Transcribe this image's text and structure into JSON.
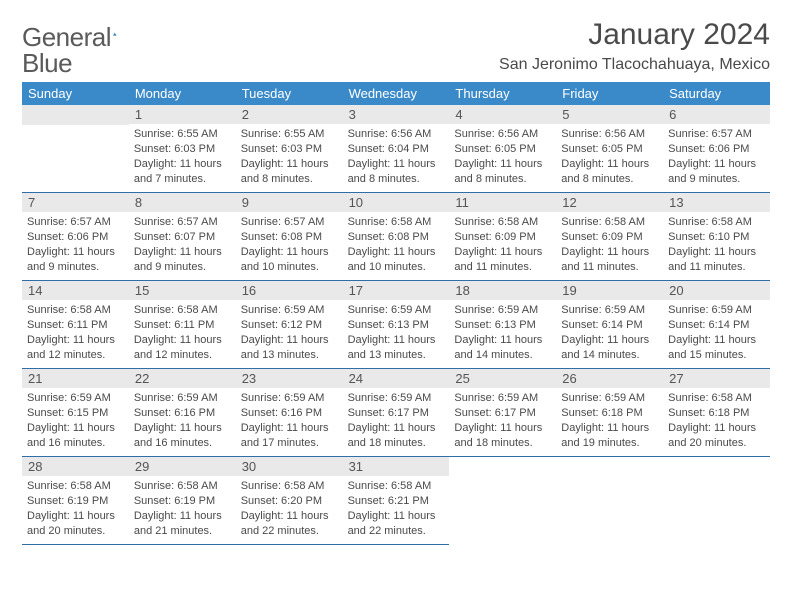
{
  "brand": {
    "word1": "General",
    "word2": "Blue"
  },
  "title": "January 2024",
  "location": "San Jeronimo Tlacochahuaya, Mexico",
  "colors": {
    "header_bg": "#3a8ac9",
    "header_text": "#ffffff",
    "daynum_bg": "#e9e9e9",
    "row_divider": "#2f6fa8",
    "body_text": "#4a4a4a"
  },
  "calendar": {
    "weekdays": [
      "Sunday",
      "Monday",
      "Tuesday",
      "Wednesday",
      "Thursday",
      "Friday",
      "Saturday"
    ],
    "start_weekday_index": 1,
    "days": [
      {
        "n": 1,
        "sunrise": "6:55 AM",
        "sunset": "6:03 PM",
        "daylight": "11 hours and 7 minutes."
      },
      {
        "n": 2,
        "sunrise": "6:55 AM",
        "sunset": "6:03 PM",
        "daylight": "11 hours and 8 minutes."
      },
      {
        "n": 3,
        "sunrise": "6:56 AM",
        "sunset": "6:04 PM",
        "daylight": "11 hours and 8 minutes."
      },
      {
        "n": 4,
        "sunrise": "6:56 AM",
        "sunset": "6:05 PM",
        "daylight": "11 hours and 8 minutes."
      },
      {
        "n": 5,
        "sunrise": "6:56 AM",
        "sunset": "6:05 PM",
        "daylight": "11 hours and 8 minutes."
      },
      {
        "n": 6,
        "sunrise": "6:57 AM",
        "sunset": "6:06 PM",
        "daylight": "11 hours and 9 minutes."
      },
      {
        "n": 7,
        "sunrise": "6:57 AM",
        "sunset": "6:06 PM",
        "daylight": "11 hours and 9 minutes."
      },
      {
        "n": 8,
        "sunrise": "6:57 AM",
        "sunset": "6:07 PM",
        "daylight": "11 hours and 9 minutes."
      },
      {
        "n": 9,
        "sunrise": "6:57 AM",
        "sunset": "6:08 PM",
        "daylight": "11 hours and 10 minutes."
      },
      {
        "n": 10,
        "sunrise": "6:58 AM",
        "sunset": "6:08 PM",
        "daylight": "11 hours and 10 minutes."
      },
      {
        "n": 11,
        "sunrise": "6:58 AM",
        "sunset": "6:09 PM",
        "daylight": "11 hours and 11 minutes."
      },
      {
        "n": 12,
        "sunrise": "6:58 AM",
        "sunset": "6:09 PM",
        "daylight": "11 hours and 11 minutes."
      },
      {
        "n": 13,
        "sunrise": "6:58 AM",
        "sunset": "6:10 PM",
        "daylight": "11 hours and 11 minutes."
      },
      {
        "n": 14,
        "sunrise": "6:58 AM",
        "sunset": "6:11 PM",
        "daylight": "11 hours and 12 minutes."
      },
      {
        "n": 15,
        "sunrise": "6:58 AM",
        "sunset": "6:11 PM",
        "daylight": "11 hours and 12 minutes."
      },
      {
        "n": 16,
        "sunrise": "6:59 AM",
        "sunset": "6:12 PM",
        "daylight": "11 hours and 13 minutes."
      },
      {
        "n": 17,
        "sunrise": "6:59 AM",
        "sunset": "6:13 PM",
        "daylight": "11 hours and 13 minutes."
      },
      {
        "n": 18,
        "sunrise": "6:59 AM",
        "sunset": "6:13 PM",
        "daylight": "11 hours and 14 minutes."
      },
      {
        "n": 19,
        "sunrise": "6:59 AM",
        "sunset": "6:14 PM",
        "daylight": "11 hours and 14 minutes."
      },
      {
        "n": 20,
        "sunrise": "6:59 AM",
        "sunset": "6:14 PM",
        "daylight": "11 hours and 15 minutes."
      },
      {
        "n": 21,
        "sunrise": "6:59 AM",
        "sunset": "6:15 PM",
        "daylight": "11 hours and 16 minutes."
      },
      {
        "n": 22,
        "sunrise": "6:59 AM",
        "sunset": "6:16 PM",
        "daylight": "11 hours and 16 minutes."
      },
      {
        "n": 23,
        "sunrise": "6:59 AM",
        "sunset": "6:16 PM",
        "daylight": "11 hours and 17 minutes."
      },
      {
        "n": 24,
        "sunrise": "6:59 AM",
        "sunset": "6:17 PM",
        "daylight": "11 hours and 18 minutes."
      },
      {
        "n": 25,
        "sunrise": "6:59 AM",
        "sunset": "6:17 PM",
        "daylight": "11 hours and 18 minutes."
      },
      {
        "n": 26,
        "sunrise": "6:59 AM",
        "sunset": "6:18 PM",
        "daylight": "11 hours and 19 minutes."
      },
      {
        "n": 27,
        "sunrise": "6:58 AM",
        "sunset": "6:18 PM",
        "daylight": "11 hours and 20 minutes."
      },
      {
        "n": 28,
        "sunrise": "6:58 AM",
        "sunset": "6:19 PM",
        "daylight": "11 hours and 20 minutes."
      },
      {
        "n": 29,
        "sunrise": "6:58 AM",
        "sunset": "6:19 PM",
        "daylight": "11 hours and 21 minutes."
      },
      {
        "n": 30,
        "sunrise": "6:58 AM",
        "sunset": "6:20 PM",
        "daylight": "11 hours and 22 minutes."
      },
      {
        "n": 31,
        "sunrise": "6:58 AM",
        "sunset": "6:21 PM",
        "daylight": "11 hours and 22 minutes."
      }
    ],
    "labels": {
      "sunrise": "Sunrise:",
      "sunset": "Sunset:",
      "daylight": "Daylight:"
    }
  }
}
